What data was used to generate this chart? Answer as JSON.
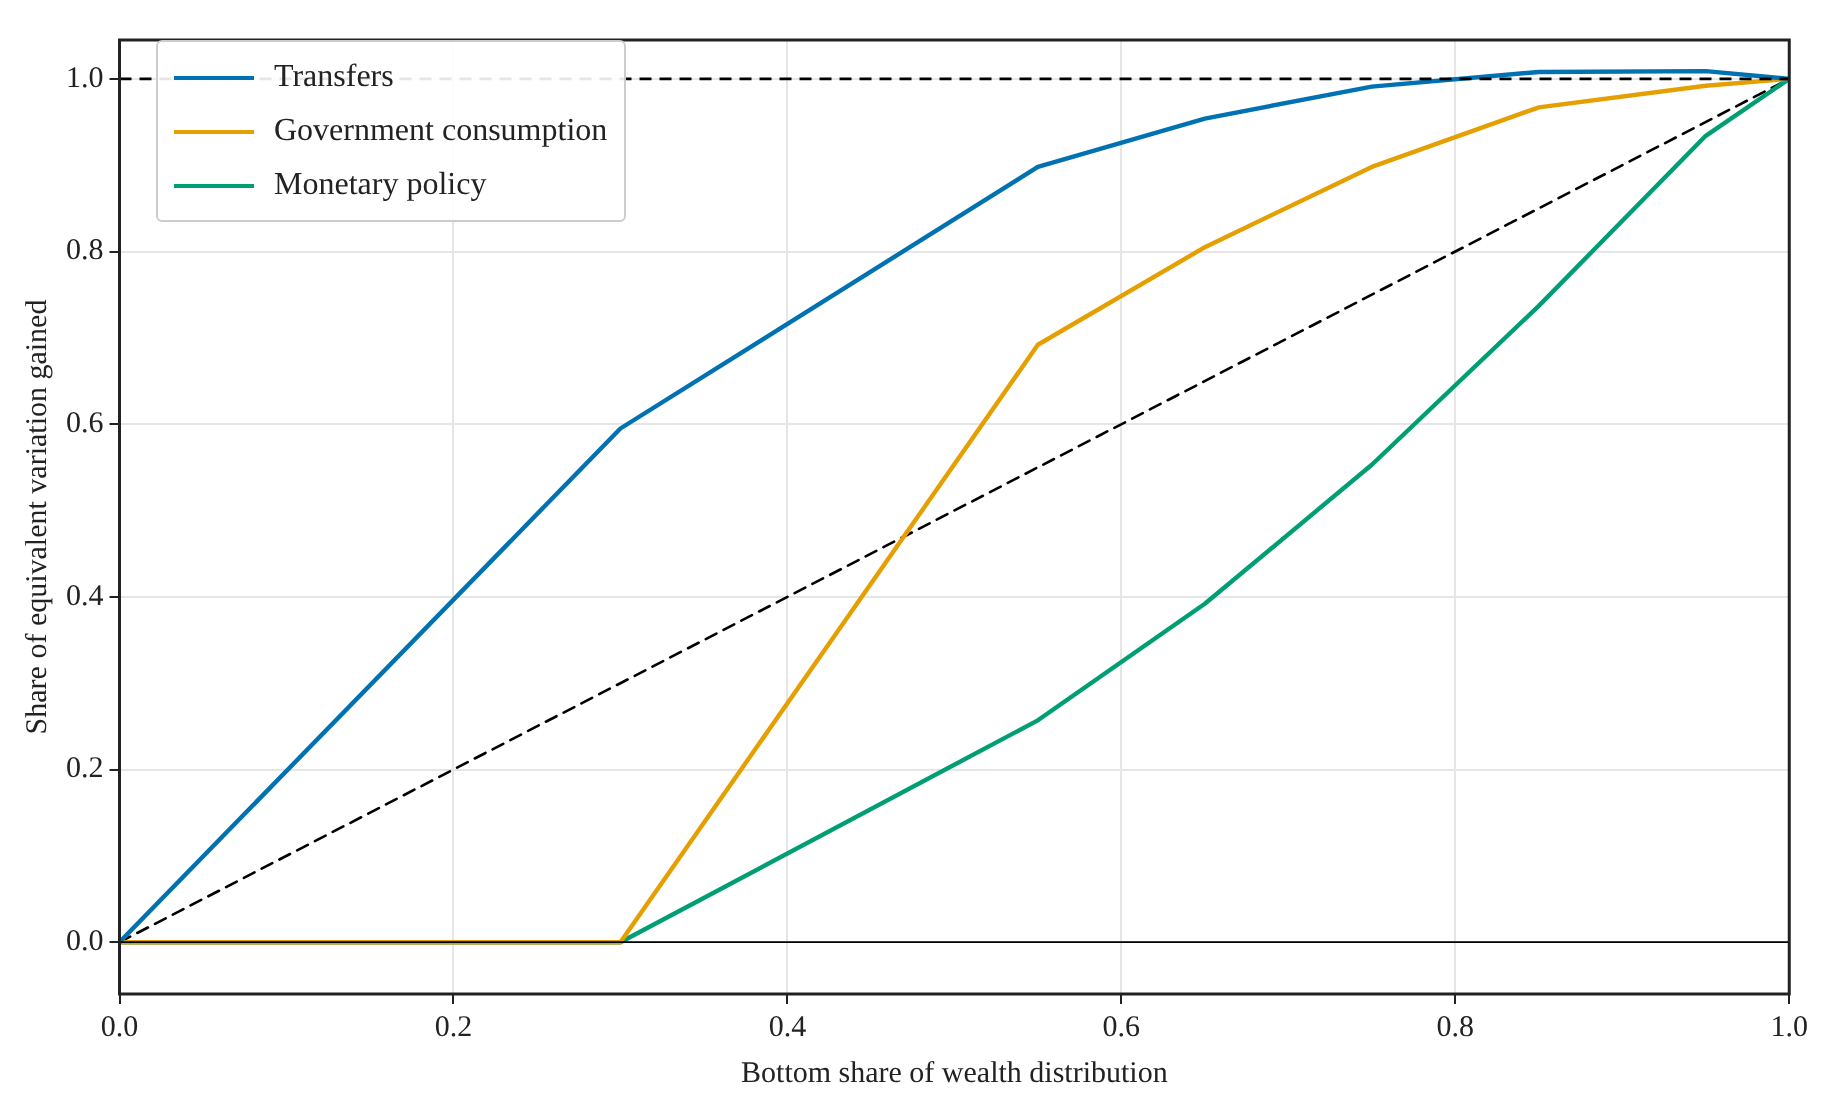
{
  "chart_data": {
    "type": "line",
    "xlabel": "Bottom share of wealth distribution",
    "ylabel": "Share of equivalent variation gained",
    "xlim": [
      0,
      1
    ],
    "ylim": [
      -0.06,
      1.045
    ],
    "xticks": [
      {
        "value": 0,
        "label": "0.0"
      },
      {
        "value": 0.2,
        "label": "0.2"
      },
      {
        "value": 0.4,
        "label": "0.4"
      },
      {
        "value": 0.6,
        "label": "0.6"
      },
      {
        "value": 0.8,
        "label": "0.8"
      },
      {
        "value": 1,
        "label": "1.0"
      }
    ],
    "yticks": [
      {
        "value": 0,
        "label": "0.0"
      },
      {
        "value": 0.2,
        "label": "0.2"
      },
      {
        "value": 0.4,
        "label": "0.4"
      },
      {
        "value": 0.6,
        "label": "0.6"
      },
      {
        "value": 0.8,
        "label": "0.8"
      },
      {
        "value": 1,
        "label": "1.0"
      }
    ],
    "grid": true,
    "legend": "top left",
    "marker": "none",
    "ref_lines": [
      {
        "axis": "y",
        "value": 1,
        "color": "#000000",
        "line_style": "dashed"
      },
      {
        "axis": "y",
        "value": 0,
        "color": "#000000",
        "line_style": "solid"
      }
    ],
    "series": [
      {
        "name": "Transfers",
        "color": "#0072b2",
        "x": [
          0,
          0.3,
          0.55,
          0.65,
          0.75,
          0.85,
          0.95,
          1
        ],
        "values": [
          0,
          0.595,
          0.898,
          0.954,
          0.991,
          1.008,
          1.009,
          1
        ]
      },
      {
        "name": "Government consumption",
        "color": "#e69f00",
        "x": [
          0,
          0.3,
          0.55,
          0.65,
          0.75,
          0.85,
          0.95,
          1
        ],
        "values": [
          0,
          0,
          0.692,
          0.805,
          0.898,
          0.967,
          0.992,
          1
        ]
      },
      {
        "name": "Monetary policy",
        "color": "#009e73",
        "x": [
          0,
          0.3,
          0.55,
          0.65,
          0.75,
          0.85,
          0.95,
          1
        ],
        "values": [
          0,
          0,
          0.257,
          0.392,
          0.553,
          0.737,
          0.934,
          1
        ]
      },
      {
        "type": "line",
        "color": "#000000",
        "line_style": "dashed",
        "x": [
          0,
          1
        ],
        "values": [
          0,
          1
        ]
      }
    ]
  }
}
